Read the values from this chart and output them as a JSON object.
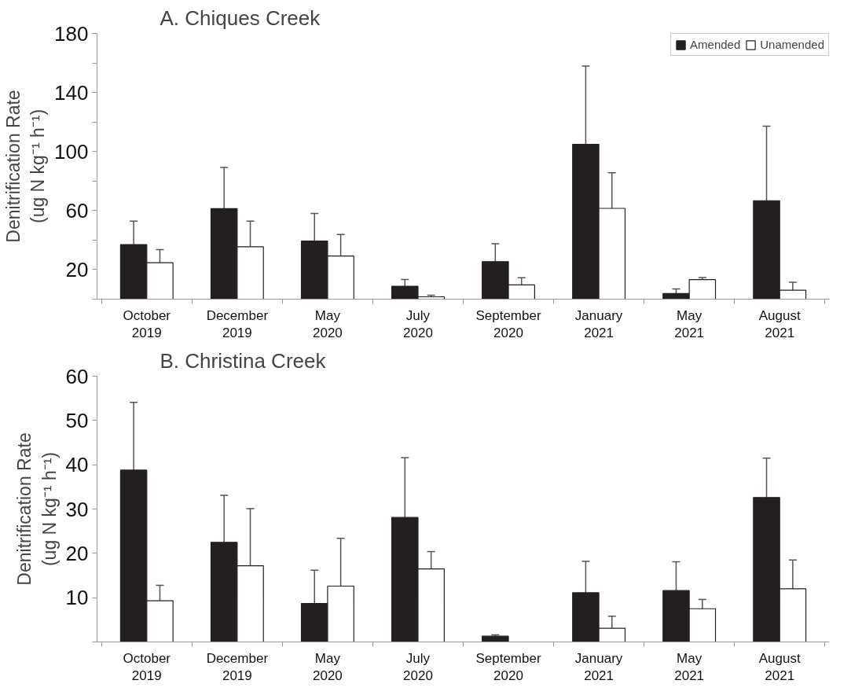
{
  "chart_data": [
    {
      "type": "bar",
      "title": "A. Chiques Creek",
      "ylabel": "Denitrification Rate\n(ug N kg⁻¹ h⁻¹)",
      "categories": [
        "October\n2019",
        "December\n2019",
        "May\n2020",
        "July\n2020",
        "September\n2020",
        "January\n2021",
        "May\n2021",
        "August\n2021"
      ],
      "ylim": [
        0,
        180
      ],
      "yticks": [
        {
          "value": 0,
          "label": null
        },
        20,
        {
          "value": 40,
          "label": null
        },
        60,
        {
          "value": 80,
          "label": null
        },
        100,
        {
          "value": 120,
          "label": null
        },
        140,
        {
          "value": 160,
          "label": null
        },
        180
      ],
      "grid": false,
      "legend": "top right",
      "series": [
        {
          "name": "Amended",
          "color": "#231f20",
          "values": [
            37,
            61.3,
            39.3,
            8.8,
            25.4,
            104.9,
            3.8,
            66.7
          ],
          "errors": [
            [
              37,
              52.8
            ],
            [
              61.3,
              89.2
            ],
            [
              39.3,
              58
            ],
            [
              8.8,
              13.3
            ],
            [
              25.4,
              37.5
            ],
            [
              104.9,
              157.9
            ],
            [
              3.8,
              6.9
            ],
            [
              66.7,
              117.2
            ]
          ]
        },
        {
          "name": "Unamended",
          "color": "#ffffff",
          "values": [
            24.7,
            35.5,
            29.2,
            1.6,
            9.6,
            61.5,
            13.2,
            6.1
          ],
          "errors": [
            [
              24.7,
              33.5
            ],
            [
              35.5,
              52.8
            ],
            [
              29.2,
              43.8
            ],
            [
              1.6,
              2.7
            ],
            [
              9.6,
              14.5
            ],
            [
              61.5,
              85.6
            ],
            [
              13.2,
              14.7
            ],
            [
              6.1,
              11.5
            ]
          ]
        }
      ]
    },
    {
      "type": "bar",
      "title": "B. Christina Creek",
      "ylabel": "Denitrification Rate\n(ug N kg⁻¹ h⁻¹)",
      "categories": [
        "October\n2019",
        "December\n2019",
        "May\n2020",
        "July\n2020",
        "September\n2020",
        "January\n2021",
        "May\n2021",
        "August\n2021"
      ],
      "ylim": [
        0,
        60
      ],
      "yticks": [
        {
          "value": 0,
          "label": null
        },
        10,
        20,
        30,
        40,
        50,
        60
      ],
      "grid": false,
      "series": [
        {
          "color": "#231f20",
          "values": [
            38.8,
            22.5,
            8.7,
            28.1,
            1.3,
            11.1,
            11.6,
            32.6
          ],
          "errors": [
            [
              38.8,
              54.1
            ],
            [
              22.5,
              33.1
            ],
            [
              8.7,
              16.2
            ],
            [
              28.1,
              41.6
            ],
            [
              1.3,
              1.6
            ],
            [
              11.1,
              18.2
            ],
            [
              11.6,
              18.1
            ],
            [
              32.6,
              41.5
            ]
          ]
        },
        {
          "color": "#ffffff",
          "values": [
            9.3,
            17.2,
            12.6,
            16.5,
            null,
            3.1,
            7.5,
            12.0
          ],
          "errors": [
            [
              9.3,
              12.8
            ],
            [
              17.2,
              30.1
            ],
            [
              12.6,
              23.4
            ],
            [
              16.5,
              20.4
            ],
            null,
            [
              3.1,
              5.8
            ],
            [
              7.5,
              9.6
            ],
            [
              12.0,
              18.5
            ]
          ]
        }
      ]
    }
  ]
}
